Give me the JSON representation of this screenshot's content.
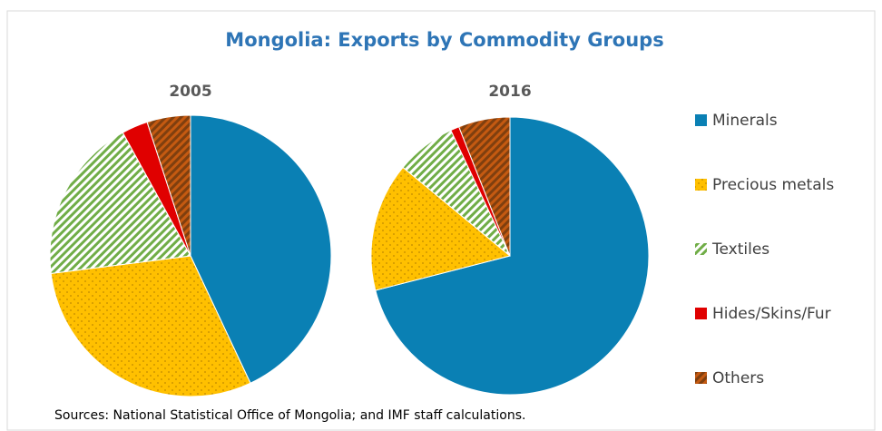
{
  "chart_data": {
    "type": "pie",
    "title": "Mongolia: Exports by Commodity Groups",
    "source": "Sources: National Statistical Office of Mongolia; and IMF staff calculations.",
    "categories": [
      "Minerals",
      "Precious metals",
      "Textiles",
      "Hides/Skins/Fur",
      "Others"
    ],
    "colors": [
      "#0a80b4",
      "#ffc000",
      "#70ad47",
      "#e00000",
      "#c55a11"
    ],
    "patterns": [
      "solid",
      "dots",
      "stripes",
      "solid",
      "stripes"
    ],
    "series": [
      {
        "name": "2005",
        "values": [
          43,
          30,
          19,
          3,
          5
        ]
      },
      {
        "name": "2016",
        "values": [
          71,
          15,
          7,
          1,
          6
        ]
      }
    ]
  }
}
